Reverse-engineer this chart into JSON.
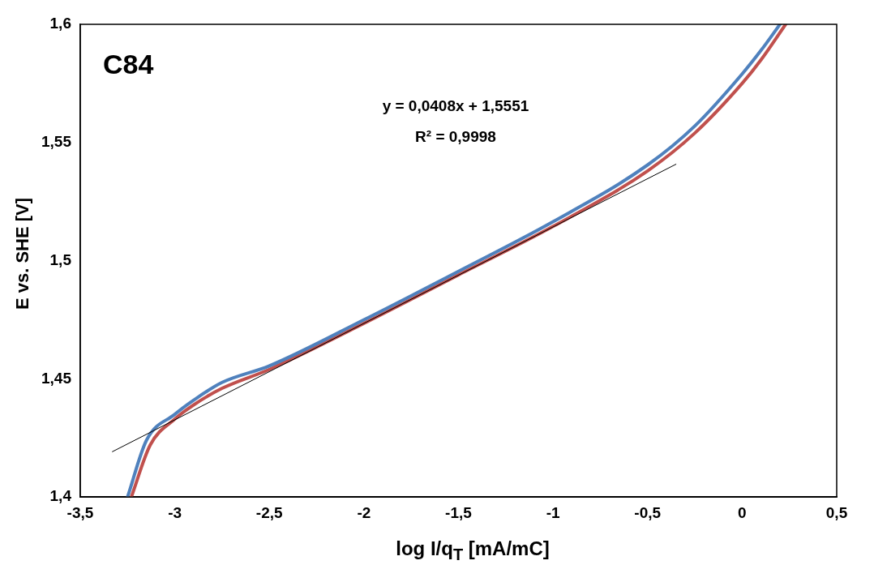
{
  "chart_data": {
    "type": "line",
    "xlabel": "log I/q$_{T}$ [mA/mC]",
    "ylabel": "E vs. SHE [V]",
    "annotations": [
      "C84",
      "y = 0,0408x + 1,5551",
      "R² = 0,9998"
    ],
    "xlim": [
      -3.5,
      0.5
    ],
    "ylim": [
      1.4,
      1.6
    ],
    "xticks": [
      {
        "value": -3.5,
        "label": "-3,5"
      },
      {
        "value": -3,
        "label": "-3"
      },
      {
        "value": -2.5,
        "label": "-2,5"
      },
      {
        "value": -2,
        "label": "-2"
      },
      {
        "value": -1.5,
        "label": "-1,5"
      },
      {
        "value": -1,
        "label": "-1"
      },
      {
        "value": -0.5,
        "label": "-0,5"
      },
      {
        "value": 0,
        "label": "0"
      },
      {
        "value": 0.5,
        "label": "0,5"
      }
    ],
    "yticks": [
      {
        "value": 1.4,
        "label": "1,4"
      },
      {
        "value": 1.45,
        "label": "1,45"
      },
      {
        "value": 1.5,
        "label": "1,5"
      },
      {
        "value": 1.55,
        "label": "1,55"
      },
      {
        "value": 1.6,
        "label": "1,6"
      }
    ],
    "grid": false,
    "legend": false,
    "marker": "none",
    "line_style": "solid",
    "series": [
      {
        "color": "#c0504d",
        "x": [
          -3.23,
          -3.13,
          -3.0,
          -2.9,
          -2.75,
          -2.5,
          -2.0,
          -1.5,
          -1.0,
          -0.5,
          -0.25,
          0.0,
          0.1,
          0.23
        ],
        "values": [
          1.4,
          1.422,
          1.433,
          1.439,
          1.446,
          1.454,
          1.4735,
          1.494,
          1.5145,
          1.538,
          1.554,
          1.575,
          1.585,
          1.6
        ]
      },
      {
        "color": "#4f81bd",
        "x": [
          -3.25,
          -3.15,
          -3.0,
          -2.9,
          -2.75,
          -2.5,
          -2.0,
          -1.5,
          -1.0,
          -0.5,
          -0.25,
          0.0,
          0.1,
          0.2
        ],
        "values": [
          1.4,
          1.424,
          1.435,
          1.441,
          1.4485,
          1.4555,
          1.475,
          1.4955,
          1.5165,
          1.5405,
          1.557,
          1.579,
          1.589,
          1.6
        ]
      },
      {
        "color": "#000000",
        "x": [
          -3.33,
          -0.35
        ],
        "values": [
          1.4192,
          1.5408
        ]
      }
    ]
  }
}
